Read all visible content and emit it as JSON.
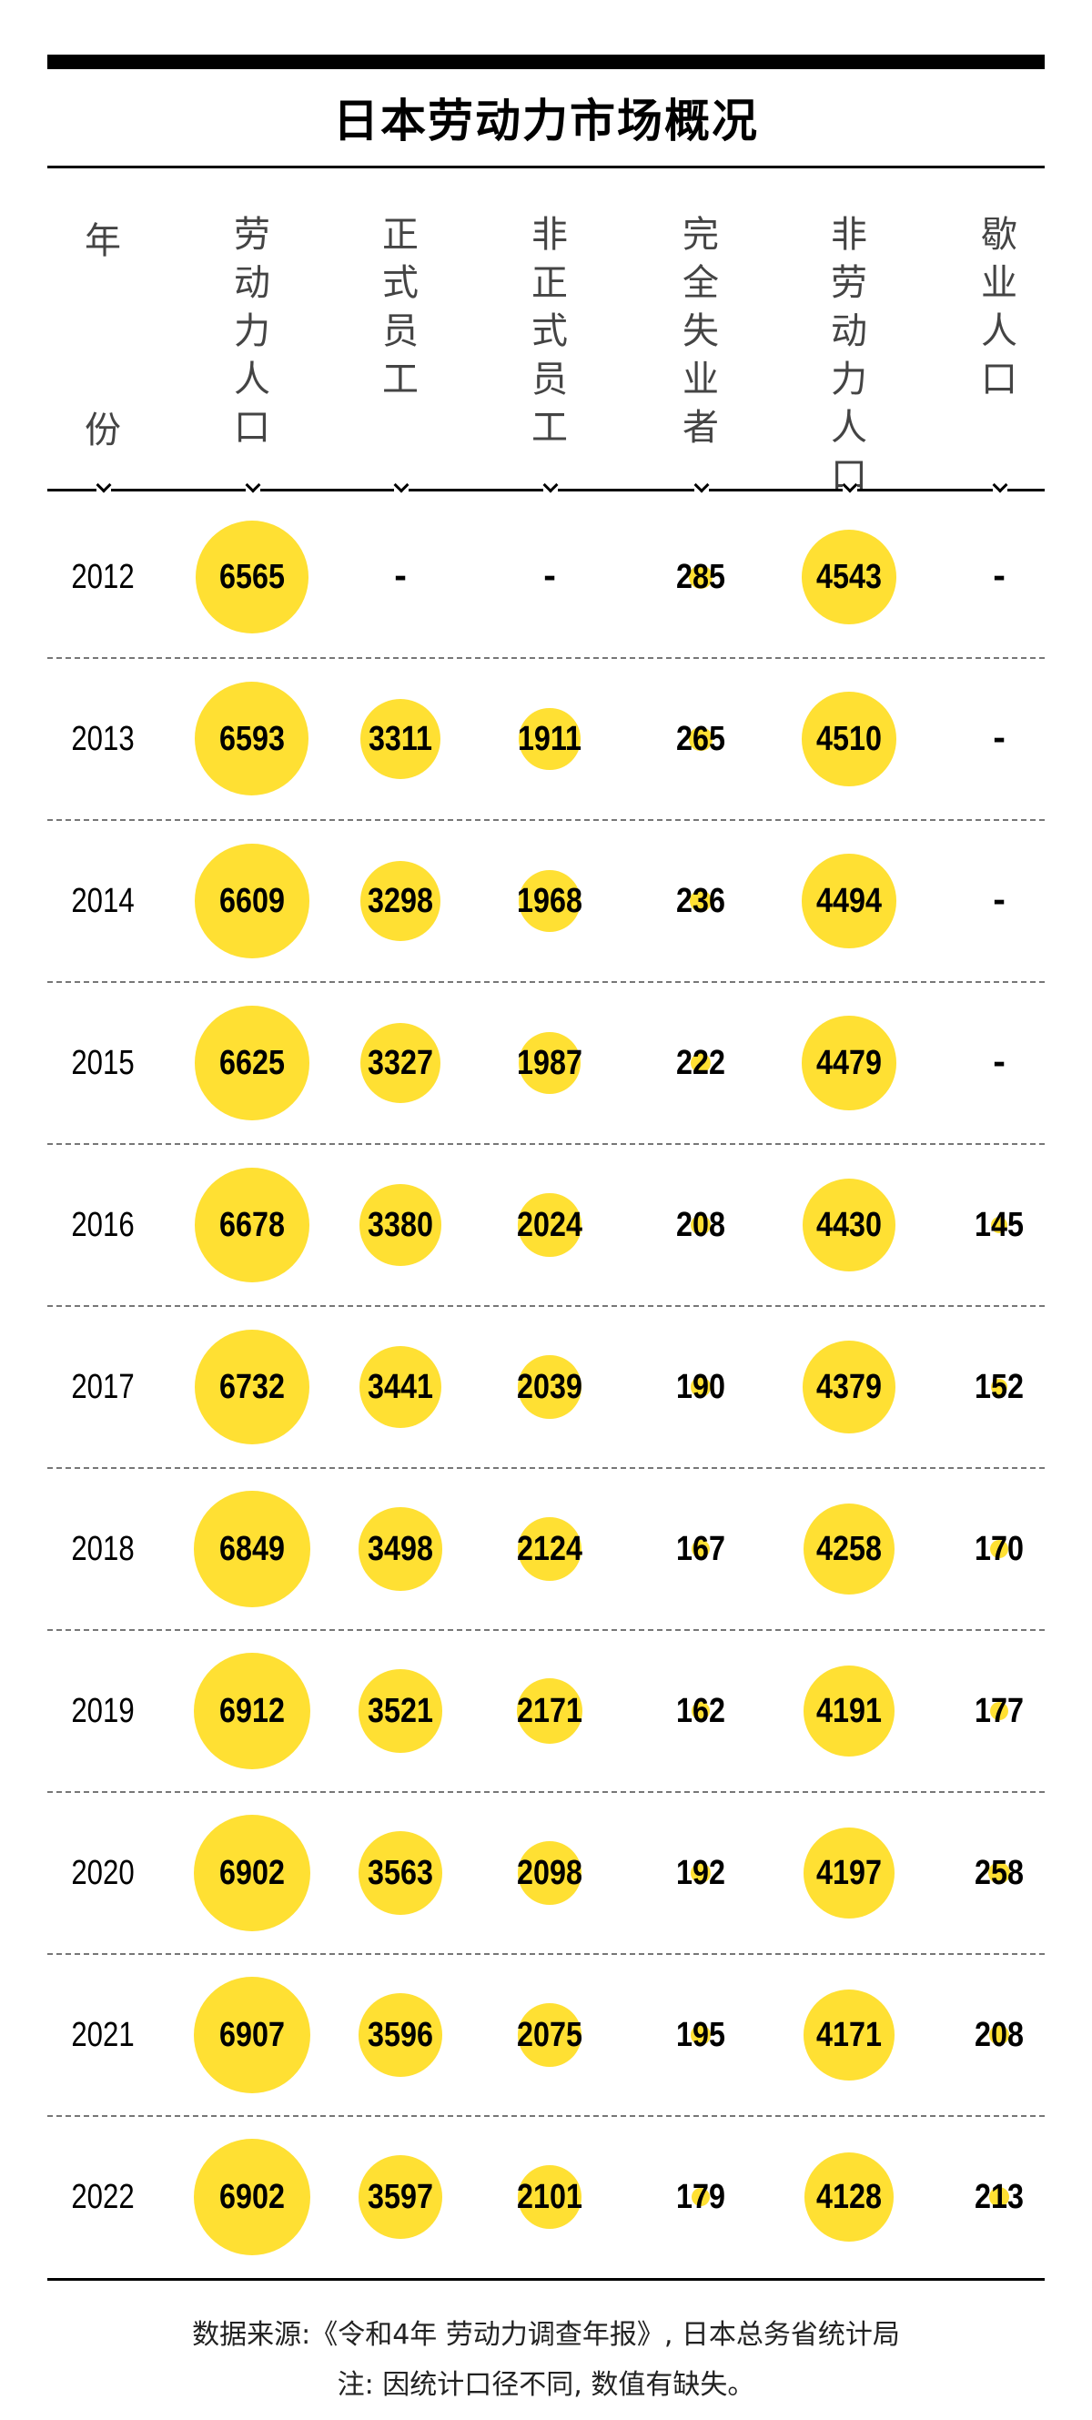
{
  "title": "日本劳动力市场概况",
  "chart_data": {
    "type": "table",
    "title": "日本劳动力市场概况",
    "columns": [
      {
        "key": "year",
        "label": "年份"
      },
      {
        "key": "labor_force",
        "label": "劳动力人口"
      },
      {
        "key": "regular",
        "label": "正式员工"
      },
      {
        "key": "non_regular",
        "label": "非正式员工"
      },
      {
        "key": "unemployed",
        "label": "完全失业者"
      },
      {
        "key": "not_in_labor_force",
        "label": "非劳动力人口"
      },
      {
        "key": "suspended",
        "label": "歇业人口"
      }
    ],
    "rows": [
      {
        "year": "2012",
        "labor_force": 6565,
        "regular": null,
        "non_regular": null,
        "unemployed": 285,
        "not_in_labor_force": 4543,
        "suspended": null
      },
      {
        "year": "2013",
        "labor_force": 6593,
        "regular": 3311,
        "non_regular": 1911,
        "unemployed": 265,
        "not_in_labor_force": 4510,
        "suspended": null
      },
      {
        "year": "2014",
        "labor_force": 6609,
        "regular": 3298,
        "non_regular": 1968,
        "unemployed": 236,
        "not_in_labor_force": 4494,
        "suspended": null
      },
      {
        "year": "2015",
        "labor_force": 6625,
        "regular": 3327,
        "non_regular": 1987,
        "unemployed": 222,
        "not_in_labor_force": 4479,
        "suspended": null
      },
      {
        "year": "2016",
        "labor_force": 6678,
        "regular": 3380,
        "non_regular": 2024,
        "unemployed": 208,
        "not_in_labor_force": 4430,
        "suspended": 145
      },
      {
        "year": "2017",
        "labor_force": 6732,
        "regular": 3441,
        "non_regular": 2039,
        "unemployed": 190,
        "not_in_labor_force": 4379,
        "suspended": 152
      },
      {
        "year": "2018",
        "labor_force": 6849,
        "regular": 3498,
        "non_regular": 2124,
        "unemployed": 167,
        "not_in_labor_force": 4258,
        "suspended": 170
      },
      {
        "year": "2019",
        "labor_force": 6912,
        "regular": 3521,
        "non_regular": 2171,
        "unemployed": 162,
        "not_in_labor_force": 4191,
        "suspended": 177
      },
      {
        "year": "2020",
        "labor_force": 6902,
        "regular": 3563,
        "non_regular": 2098,
        "unemployed": 192,
        "not_in_labor_force": 4197,
        "suspended": 258
      },
      {
        "year": "2021",
        "labor_force": 6907,
        "regular": 3596,
        "non_regular": 2075,
        "unemployed": 195,
        "not_in_labor_force": 4171,
        "suspended": 208
      },
      {
        "year": "2022",
        "labor_force": 6902,
        "regular": 3597,
        "non_regular": 2101,
        "unemployed": 179,
        "not_in_labor_force": 4128,
        "suspended": 213
      }
    ],
    "missing_label": "-",
    "bubble_color": "#ffe033"
  },
  "footer": {
    "source": "数据来源:《令和4年 劳动力调查年报》, 日本总务省统计局",
    "note": "注: 因统计口径不同, 数值有缺失。"
  }
}
